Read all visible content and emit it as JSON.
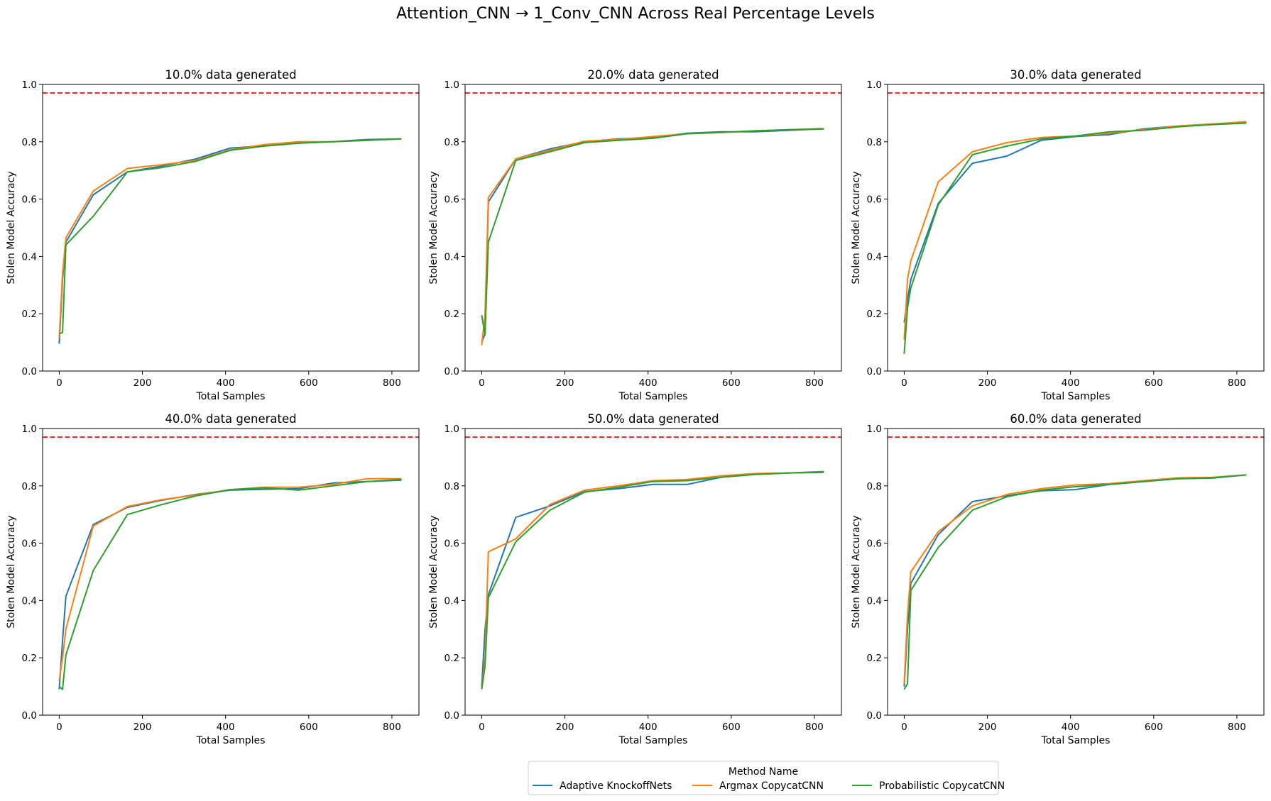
{
  "figure": {
    "title": "Attention_CNN → 1_Conv_CNN Across Real Percentage Levels"
  },
  "colors": {
    "Adaptive KnockoffNets": "#1f77b4",
    "Argmax CopycatCNN": "#ff7f0e",
    "Probabilistic CopycatCNN": "#2ca02c",
    "reference_line": "#d62728"
  },
  "legend": {
    "title": "Method Name",
    "placement": "bottom-center",
    "entries": [
      "Adaptive KnockoffNets",
      "Argmax CopycatCNN",
      "Probabilistic CopycatCNN"
    ]
  },
  "chart_data": [
    {
      "type": "line",
      "title": "10.0% data generated",
      "xlabel": "Total Samples",
      "ylabel": "Stolen Model Accuracy",
      "xlim": [
        -40,
        865
      ],
      "ylim": [
        0,
        1.0
      ],
      "xticks": [
        0,
        200,
        400,
        600,
        800
      ],
      "yticks": [
        0.0,
        0.2,
        0.4,
        0.6,
        0.8,
        1.0
      ],
      "reference_line": {
        "y": 0.97,
        "style": "dashed"
      },
      "series": [
        {
          "name": "Adaptive KnockoffNets",
          "x": [
            0,
            8,
            16,
            82,
            164,
            247,
            329,
            411,
            494,
            576,
            658,
            741,
            823
          ],
          "y": [
            0.095,
            0.32,
            0.45,
            0.615,
            0.695,
            0.715,
            0.74,
            0.778,
            0.786,
            0.795,
            0.8,
            0.808,
            0.81
          ]
        },
        {
          "name": "Argmax CopycatCNN",
          "x": [
            0,
            8,
            16,
            82,
            164,
            247,
            329,
            411,
            494,
            576,
            658,
            741,
            823
          ],
          "y": [
            0.115,
            0.34,
            0.465,
            0.628,
            0.707,
            0.72,
            0.735,
            0.772,
            0.79,
            0.8,
            0.8,
            0.805,
            0.81
          ]
        },
        {
          "name": "Probabilistic CopycatCNN",
          "x": [
            0,
            8,
            16,
            82,
            164,
            247,
            329,
            411,
            494,
            576,
            658,
            741,
            823
          ],
          "y": [
            0.13,
            0.135,
            0.44,
            0.54,
            0.695,
            0.71,
            0.732,
            0.77,
            0.785,
            0.795,
            0.8,
            0.805,
            0.81
          ]
        }
      ]
    },
    {
      "type": "line",
      "title": "20.0% data generated",
      "xlabel": "Total Samples",
      "ylabel": "Stolen Model Accuracy",
      "xlim": [
        -40,
        865
      ],
      "ylim": [
        0,
        1.0
      ],
      "xticks": [
        0,
        200,
        400,
        600,
        800
      ],
      "yticks": [
        0.0,
        0.2,
        0.4,
        0.6,
        0.8,
        1.0
      ],
      "reference_line": {
        "y": 0.97,
        "style": "dashed"
      },
      "series": [
        {
          "name": "Adaptive KnockoffNets",
          "x": [
            0,
            8,
            16,
            82,
            164,
            247,
            329,
            411,
            494,
            576,
            658,
            741,
            823
          ],
          "y": [
            0.1,
            0.13,
            0.59,
            0.74,
            0.775,
            0.8,
            0.81,
            0.815,
            0.83,
            0.835,
            0.835,
            0.84,
            0.845
          ]
        },
        {
          "name": "Argmax CopycatCNN",
          "x": [
            0,
            8,
            16,
            82,
            164,
            247,
            329,
            411,
            494,
            576,
            658,
            741,
            823
          ],
          "y": [
            0.09,
            0.2,
            0.605,
            0.74,
            0.77,
            0.802,
            0.808,
            0.818,
            0.828,
            0.832,
            0.838,
            0.842,
            0.846
          ]
        },
        {
          "name": "Probabilistic CopycatCNN",
          "x": [
            0,
            8,
            16,
            82,
            164,
            247,
            329,
            411,
            494,
            576,
            658,
            741,
            823
          ],
          "y": [
            0.195,
            0.125,
            0.45,
            0.735,
            0.765,
            0.797,
            0.805,
            0.812,
            0.828,
            0.833,
            0.838,
            0.842,
            0.845
          ]
        }
      ]
    },
    {
      "type": "line",
      "title": "30.0% data generated",
      "xlabel": "Total Samples",
      "ylabel": "Stolen Model Accuracy",
      "xlim": [
        -40,
        865
      ],
      "ylim": [
        0,
        1.0
      ],
      "xticks": [
        0,
        200,
        400,
        600,
        800
      ],
      "yticks": [
        0.0,
        0.2,
        0.4,
        0.6,
        0.8,
        1.0
      ],
      "reference_line": {
        "y": 0.97,
        "style": "dashed"
      },
      "series": [
        {
          "name": "Adaptive KnockoffNets",
          "x": [
            0,
            8,
            16,
            82,
            164,
            247,
            329,
            411,
            494,
            576,
            658,
            741,
            823
          ],
          "y": [
            0.17,
            0.25,
            0.32,
            0.585,
            0.725,
            0.75,
            0.805,
            0.818,
            0.825,
            0.845,
            0.855,
            0.862,
            0.868
          ]
        },
        {
          "name": "Argmax CopycatCNN",
          "x": [
            0,
            8,
            16,
            82,
            164,
            247,
            329,
            411,
            494,
            576,
            658,
            741,
            823
          ],
          "y": [
            0.11,
            0.32,
            0.385,
            0.66,
            0.765,
            0.797,
            0.815,
            0.82,
            0.83,
            0.842,
            0.855,
            0.862,
            0.87
          ]
        },
        {
          "name": "Probabilistic CopycatCNN",
          "x": [
            0,
            8,
            16,
            82,
            164,
            247,
            329,
            411,
            494,
            576,
            658,
            741,
            823
          ],
          "y": [
            0.06,
            0.22,
            0.29,
            0.58,
            0.755,
            0.785,
            0.81,
            0.82,
            0.835,
            0.84,
            0.852,
            0.86,
            0.865
          ]
        }
      ]
    },
    {
      "type": "line",
      "title": "40.0% data generated",
      "xlabel": "Total Samples",
      "ylabel": "Stolen Model Accuracy",
      "xlim": [
        -40,
        865
      ],
      "ylim": [
        0,
        1.0
      ],
      "xticks": [
        0,
        200,
        400,
        600,
        800
      ],
      "yticks": [
        0.0,
        0.2,
        0.4,
        0.6,
        0.8,
        1.0
      ],
      "reference_line": {
        "y": 0.97,
        "style": "dashed"
      },
      "series": [
        {
          "name": "Adaptive KnockoffNets",
          "x": [
            0,
            8,
            16,
            82,
            164,
            247,
            329,
            411,
            494,
            576,
            658,
            741,
            823
          ],
          "y": [
            0.09,
            0.26,
            0.415,
            0.665,
            0.725,
            0.75,
            0.77,
            0.785,
            0.788,
            0.79,
            0.81,
            0.815,
            0.82
          ]
        },
        {
          "name": "Argmax CopycatCNN",
          "x": [
            0,
            8,
            16,
            82,
            164,
            247,
            329,
            411,
            494,
            576,
            658,
            741,
            823
          ],
          "y": [
            0.12,
            0.2,
            0.3,
            0.66,
            0.728,
            0.752,
            0.768,
            0.787,
            0.795,
            0.795,
            0.805,
            0.825,
            0.825
          ]
        },
        {
          "name": "Probabilistic CopycatCNN",
          "x": [
            0,
            8,
            16,
            82,
            164,
            247,
            329,
            411,
            494,
            576,
            658,
            741,
            823
          ],
          "y": [
            0.1,
            0.09,
            0.21,
            0.505,
            0.7,
            0.735,
            0.765,
            0.787,
            0.793,
            0.785,
            0.8,
            0.815,
            0.822
          ]
        }
      ]
    },
    {
      "type": "line",
      "title": "50.0% data generated",
      "xlabel": "Total Samples",
      "ylabel": "Stolen Model Accuracy",
      "xlim": [
        -40,
        865
      ],
      "ylim": [
        0,
        1.0
      ],
      "xticks": [
        0,
        200,
        400,
        600,
        800
      ],
      "yticks": [
        0.0,
        0.2,
        0.4,
        0.6,
        0.8,
        1.0
      ],
      "reference_line": {
        "y": 0.97,
        "style": "dashed"
      },
      "series": [
        {
          "name": "Adaptive KnockoffNets",
          "x": [
            0,
            8,
            16,
            82,
            164,
            247,
            329,
            411,
            494,
            576,
            658,
            741,
            823
          ],
          "y": [
            0.1,
            0.3,
            0.42,
            0.69,
            0.73,
            0.78,
            0.79,
            0.805,
            0.805,
            0.83,
            0.84,
            0.845,
            0.85
          ]
        },
        {
          "name": "Argmax CopycatCNN",
          "x": [
            0,
            8,
            16,
            82,
            164,
            247,
            329,
            411,
            494,
            576,
            658,
            741,
            823
          ],
          "y": [
            0.09,
            0.2,
            0.57,
            0.615,
            0.735,
            0.785,
            0.8,
            0.818,
            0.822,
            0.835,
            0.843,
            0.845,
            0.848
          ]
        },
        {
          "name": "Probabilistic CopycatCNN",
          "x": [
            0,
            8,
            16,
            82,
            164,
            247,
            329,
            411,
            494,
            576,
            658,
            741,
            823
          ],
          "y": [
            0.09,
            0.17,
            0.41,
            0.605,
            0.715,
            0.778,
            0.795,
            0.815,
            0.818,
            0.83,
            0.84,
            0.845,
            0.847
          ]
        }
      ]
    },
    {
      "type": "line",
      "title": "60.0% data generated",
      "xlabel": "Total Samples",
      "ylabel": "Stolen Model Accuracy",
      "xlim": [
        -40,
        865
      ],
      "ylim": [
        0,
        1.0
      ],
      "xticks": [
        0,
        200,
        400,
        600,
        800
      ],
      "yticks": [
        0.0,
        0.2,
        0.4,
        0.6,
        0.8,
        1.0
      ],
      "reference_line": {
        "y": 0.97,
        "style": "dashed"
      },
      "series": [
        {
          "name": "Adaptive KnockoffNets",
          "x": [
            0,
            8,
            16,
            82,
            164,
            247,
            329,
            411,
            494,
            576,
            658,
            741,
            823
          ],
          "y": [
            0.1,
            0.3,
            0.46,
            0.63,
            0.745,
            0.765,
            0.783,
            0.787,
            0.805,
            0.815,
            0.825,
            0.827,
            0.838
          ]
        },
        {
          "name": "Argmax CopycatCNN",
          "x": [
            0,
            8,
            16,
            82,
            164,
            247,
            329,
            411,
            494,
            576,
            658,
            741,
            823
          ],
          "y": [
            0.11,
            0.35,
            0.5,
            0.64,
            0.73,
            0.77,
            0.79,
            0.803,
            0.808,
            0.818,
            0.828,
            0.83,
            0.838
          ]
        },
        {
          "name": "Probabilistic CopycatCNN",
          "x": [
            0,
            8,
            16,
            82,
            164,
            247,
            329,
            411,
            494,
            576,
            658,
            741,
            823
          ],
          "y": [
            0.09,
            0.11,
            0.435,
            0.585,
            0.715,
            0.762,
            0.785,
            0.797,
            0.805,
            0.815,
            0.825,
            0.828,
            0.838
          ]
        }
      ]
    }
  ]
}
